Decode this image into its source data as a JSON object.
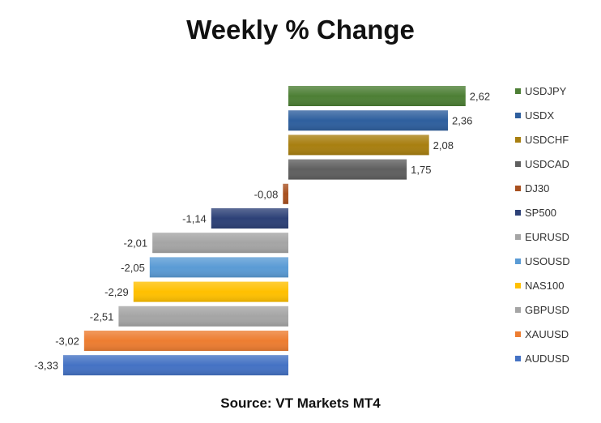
{
  "title": "Weekly % Change",
  "source": "Source: VT Markets MT4",
  "chart_data": {
    "type": "bar",
    "orientation": "horizontal",
    "title": "Weekly % Change",
    "categories": [
      "USDJPY",
      "USDX",
      "USDCHF",
      "USDCAD",
      "DJ30",
      "SP500",
      "EURUSD",
      "USOUSD",
      "NAS100",
      "GBPUSD",
      "XAUUSD",
      "AUDUSD"
    ],
    "values": [
      2.62,
      2.36,
      2.08,
      1.75,
      -0.08,
      -1.14,
      -2.01,
      -2.05,
      -2.29,
      -2.51,
      -3.02,
      -3.33
    ],
    "labels": [
      "2,62",
      "2,36",
      "2,08",
      "1,75",
      "-0,08",
      "-1,14",
      "-2,01",
      "-2,05",
      "-2,29",
      "-2,51",
      "-3,02",
      "-3,33"
    ],
    "colors": [
      "#4d7f35",
      "#2e5f9e",
      "#a87f10",
      "#5f5f5f",
      "#a8501f",
      "#2d4177",
      "#a5a5a5",
      "#5a9bd5",
      "#ffc000",
      "#a5a5a5",
      "#ed7d31",
      "#4472c4"
    ],
    "legend": "right",
    "grid": false
  }
}
